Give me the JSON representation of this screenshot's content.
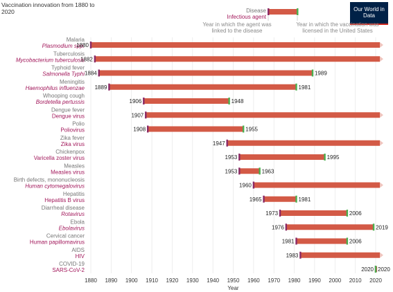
{
  "title": "Vaccination innovation from 1880 to 2020",
  "branding": "Our World in Data",
  "legend": {
    "disease": "Disease",
    "agent": "Infectious agent",
    "agent_note": "Year in which the agent was linked to the disease",
    "licensed_note": "Year in which the vaccination was licensed in the United States"
  },
  "colors": {
    "bar": "#d35a46",
    "linked_marker": "#8a2a66",
    "licensed_marker": "#4caf50",
    "agent_text": "#a2185b",
    "disease_text": "#767676"
  },
  "chart_data": {
    "type": "bar",
    "xlabel": "Year",
    "xlim": [
      1875,
      2022
    ],
    "xticks": [
      1880,
      1890,
      1900,
      1910,
      1920,
      1930,
      1940,
      1950,
      1960,
      1970,
      1980,
      1990,
      2000,
      2010,
      2020
    ],
    "rows": [
      {
        "disease": "Malaria",
        "agent": "Plasmodium spp.",
        "italic": true,
        "linked": 1880,
        "licensed": null
      },
      {
        "disease": "Tuberculosis",
        "agent": "Mycobacterium tuberculosis",
        "italic": true,
        "linked": 1882,
        "licensed": null
      },
      {
        "disease": "Typhoid fever",
        "agent": "Salmonella Typhi",
        "italic": true,
        "linked": 1884,
        "licensed": 1989
      },
      {
        "disease": "Meningitis",
        "agent": "Haemophilus influenzae",
        "italic": true,
        "linked": 1889,
        "licensed": 1981
      },
      {
        "disease": "Whooping cough",
        "agent": "Bordetella pertussis",
        "italic": true,
        "linked": 1906,
        "licensed": 1948
      },
      {
        "disease": "Dengue fever",
        "agent": "Dengue virus",
        "italic": false,
        "linked": 1907,
        "licensed": null
      },
      {
        "disease": "Polio",
        "agent": "Poliovirus",
        "italic": false,
        "linked": 1908,
        "licensed": 1955
      },
      {
        "disease": "Zika fever",
        "agent": "Zika virus",
        "italic": false,
        "linked": 1947,
        "licensed": null
      },
      {
        "disease": "Chickenpox",
        "agent": "Varicella zoster virus",
        "italic": false,
        "linked": 1953,
        "licensed": 1995
      },
      {
        "disease": "Measles",
        "agent": "Measles virus",
        "italic": false,
        "linked": 1953,
        "licensed": 1963
      },
      {
        "disease": "Birth defects, mononucleosis",
        "agent": "Human cytomegalovirus",
        "italic": true,
        "linked": 1960,
        "licensed": null
      },
      {
        "disease": "Hepatitis",
        "agent": "Hepatitis B virus",
        "italic": false,
        "linked": 1965,
        "licensed": 1981
      },
      {
        "disease": "Diarrheal disease",
        "agent": "Rotavirus",
        "italic": true,
        "linked": 1973,
        "licensed": 2006
      },
      {
        "disease": "Ebola",
        "agent": "Ebolavirus",
        "italic": true,
        "linked": 1976,
        "licensed": 2019
      },
      {
        "disease": "Cervical cancer",
        "agent": "Human papillomavirus",
        "italic": false,
        "linked": 1981,
        "licensed": 2006
      },
      {
        "disease": "AIDS",
        "agent": "HIV",
        "italic": false,
        "linked": 1983,
        "licensed": null
      },
      {
        "disease": "COVID-19",
        "agent": "SARS-CoV-2",
        "italic": false,
        "linked": 2020,
        "licensed": 2020
      }
    ]
  }
}
